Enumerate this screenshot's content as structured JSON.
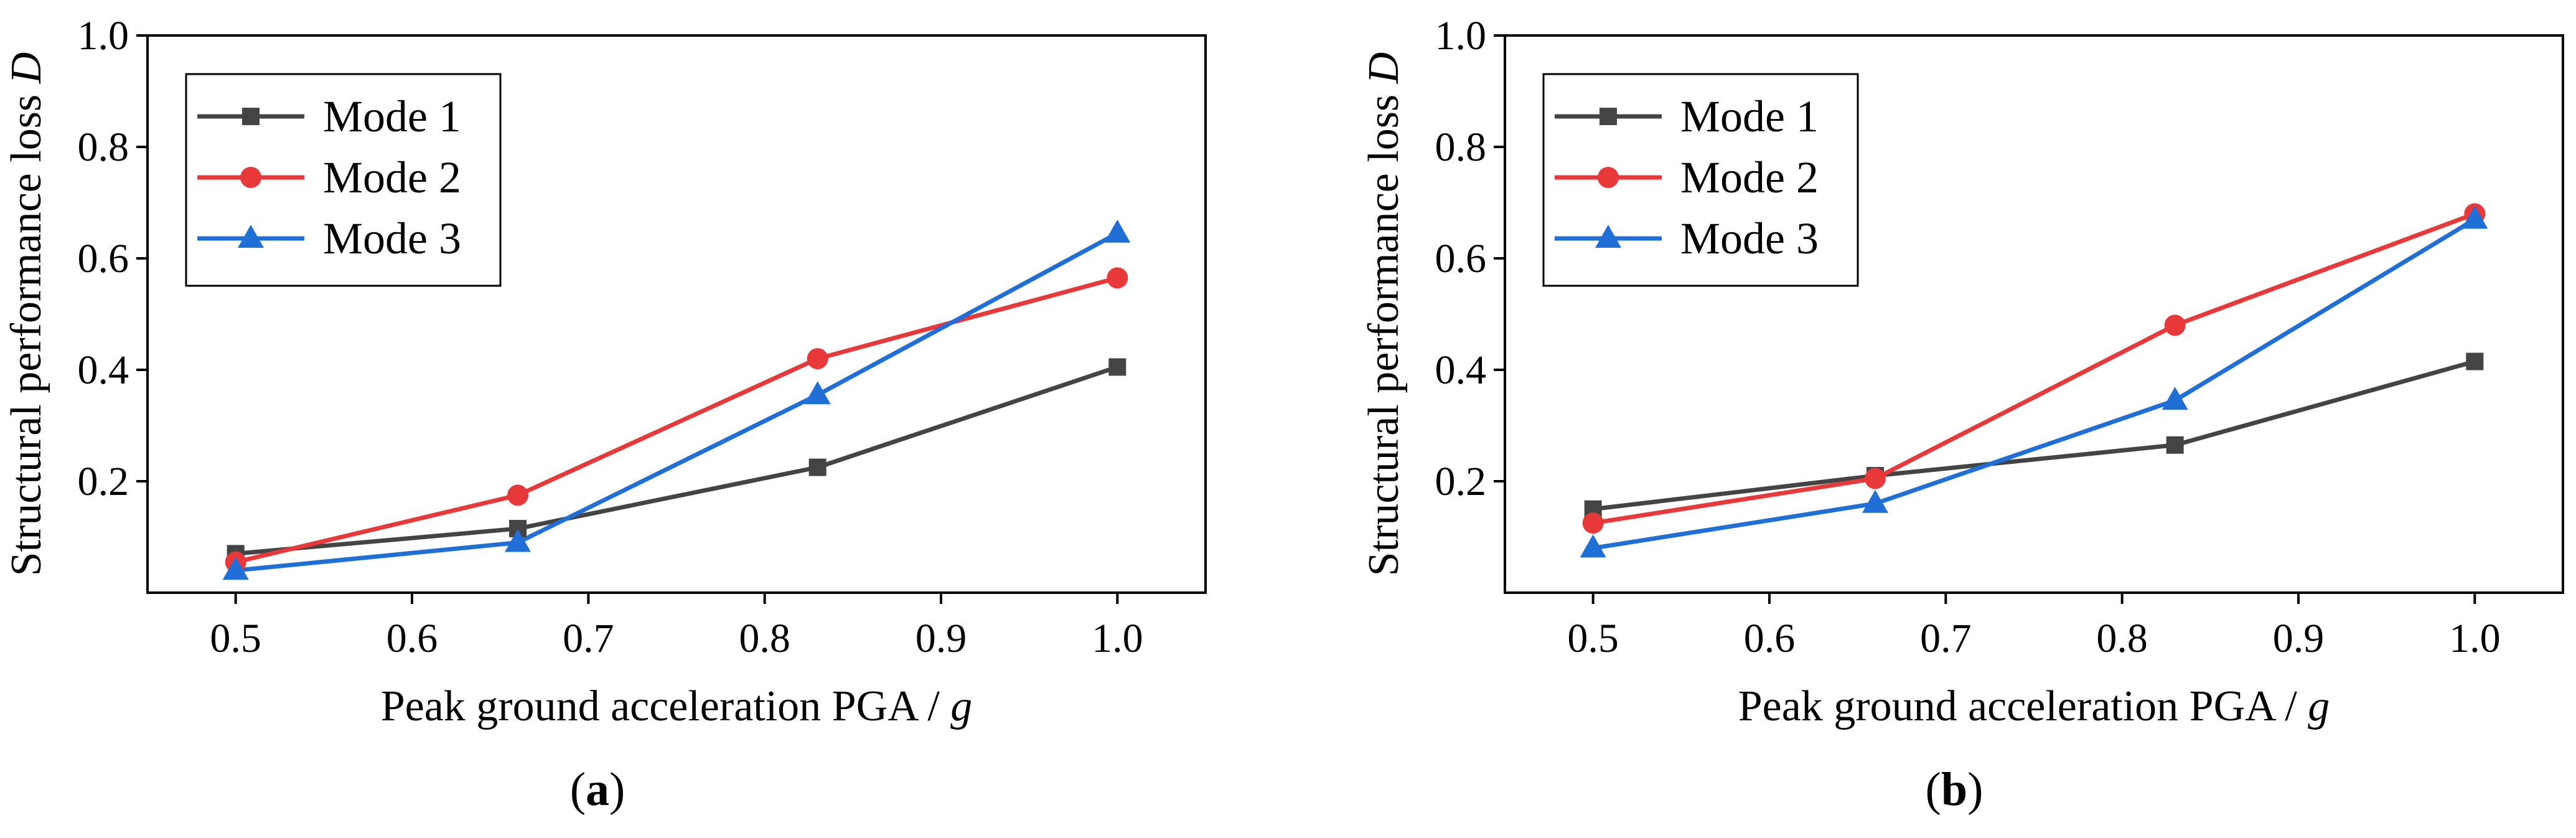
{
  "chart_data": [
    {
      "panel": "a",
      "caption_open": "(",
      "caption_letter": "a",
      "caption_close": ")",
      "type": "line",
      "x": [
        0.5,
        0.66,
        0.83,
        1.0
      ],
      "xlim": [
        0.45,
        1.05
      ],
      "ylim": [
        0.0,
        1.0
      ],
      "xticks": [
        "0.5",
        "0.6",
        "0.7",
        "0.8",
        "0.9",
        "1.0"
      ],
      "xtick_values": [
        0.5,
        0.6,
        0.7,
        0.8,
        0.9,
        1.0
      ],
      "yticks": [
        "0.2",
        "0.4",
        "0.6",
        "0.8",
        "1.0"
      ],
      "ytick_values": [
        0.2,
        0.4,
        0.6,
        0.8,
        1.0
      ],
      "xlabel_main": "Peak ground acceleration PGA / ",
      "xlabel_var": "g",
      "ylabel_main": "Structural performance loss ",
      "ylabel_var": "D",
      "legend_position": "top-left",
      "grid": false,
      "series": [
        {
          "name": "Mode 1",
          "color": "#444444",
          "marker": "square",
          "values": [
            0.07,
            0.115,
            0.225,
            0.405
          ]
        },
        {
          "name": "Mode 2",
          "color": "#e8393a",
          "marker": "circle",
          "values": [
            0.055,
            0.175,
            0.42,
            0.565
          ]
        },
        {
          "name": "Mode 3",
          "color": "#1f6fd6",
          "marker": "triangle",
          "values": [
            0.04,
            0.09,
            0.355,
            0.645
          ]
        }
      ]
    },
    {
      "panel": "b",
      "caption_open": "(",
      "caption_letter": "b",
      "caption_close": ")",
      "type": "line",
      "x": [
        0.5,
        0.66,
        0.83,
        1.0
      ],
      "xlim": [
        0.45,
        1.05
      ],
      "ylim": [
        0.0,
        1.0
      ],
      "xticks": [
        "0.5",
        "0.6",
        "0.7",
        "0.8",
        "0.9",
        "1.0"
      ],
      "xtick_values": [
        0.5,
        0.6,
        0.7,
        0.8,
        0.9,
        1.0
      ],
      "yticks": [
        "0.2",
        "0.4",
        "0.6",
        "0.8",
        "1.0"
      ],
      "ytick_values": [
        0.2,
        0.4,
        0.6,
        0.8,
        1.0
      ],
      "xlabel_main": "Peak ground acceleration PGA / ",
      "xlabel_var": "g",
      "ylabel_main": "Structural performance loss ",
      "ylabel_var": "D",
      "legend_position": "top-left",
      "grid": false,
      "series": [
        {
          "name": "Mode 1",
          "color": "#444444",
          "marker": "square",
          "values": [
            0.15,
            0.21,
            0.265,
            0.415
          ]
        },
        {
          "name": "Mode 2",
          "color": "#e8393a",
          "marker": "circle",
          "values": [
            0.125,
            0.205,
            0.48,
            0.68
          ]
        },
        {
          "name": "Mode 3",
          "color": "#1f6fd6",
          "marker": "triangle",
          "values": [
            0.08,
            0.16,
            0.345,
            0.67
          ]
        }
      ]
    }
  ]
}
